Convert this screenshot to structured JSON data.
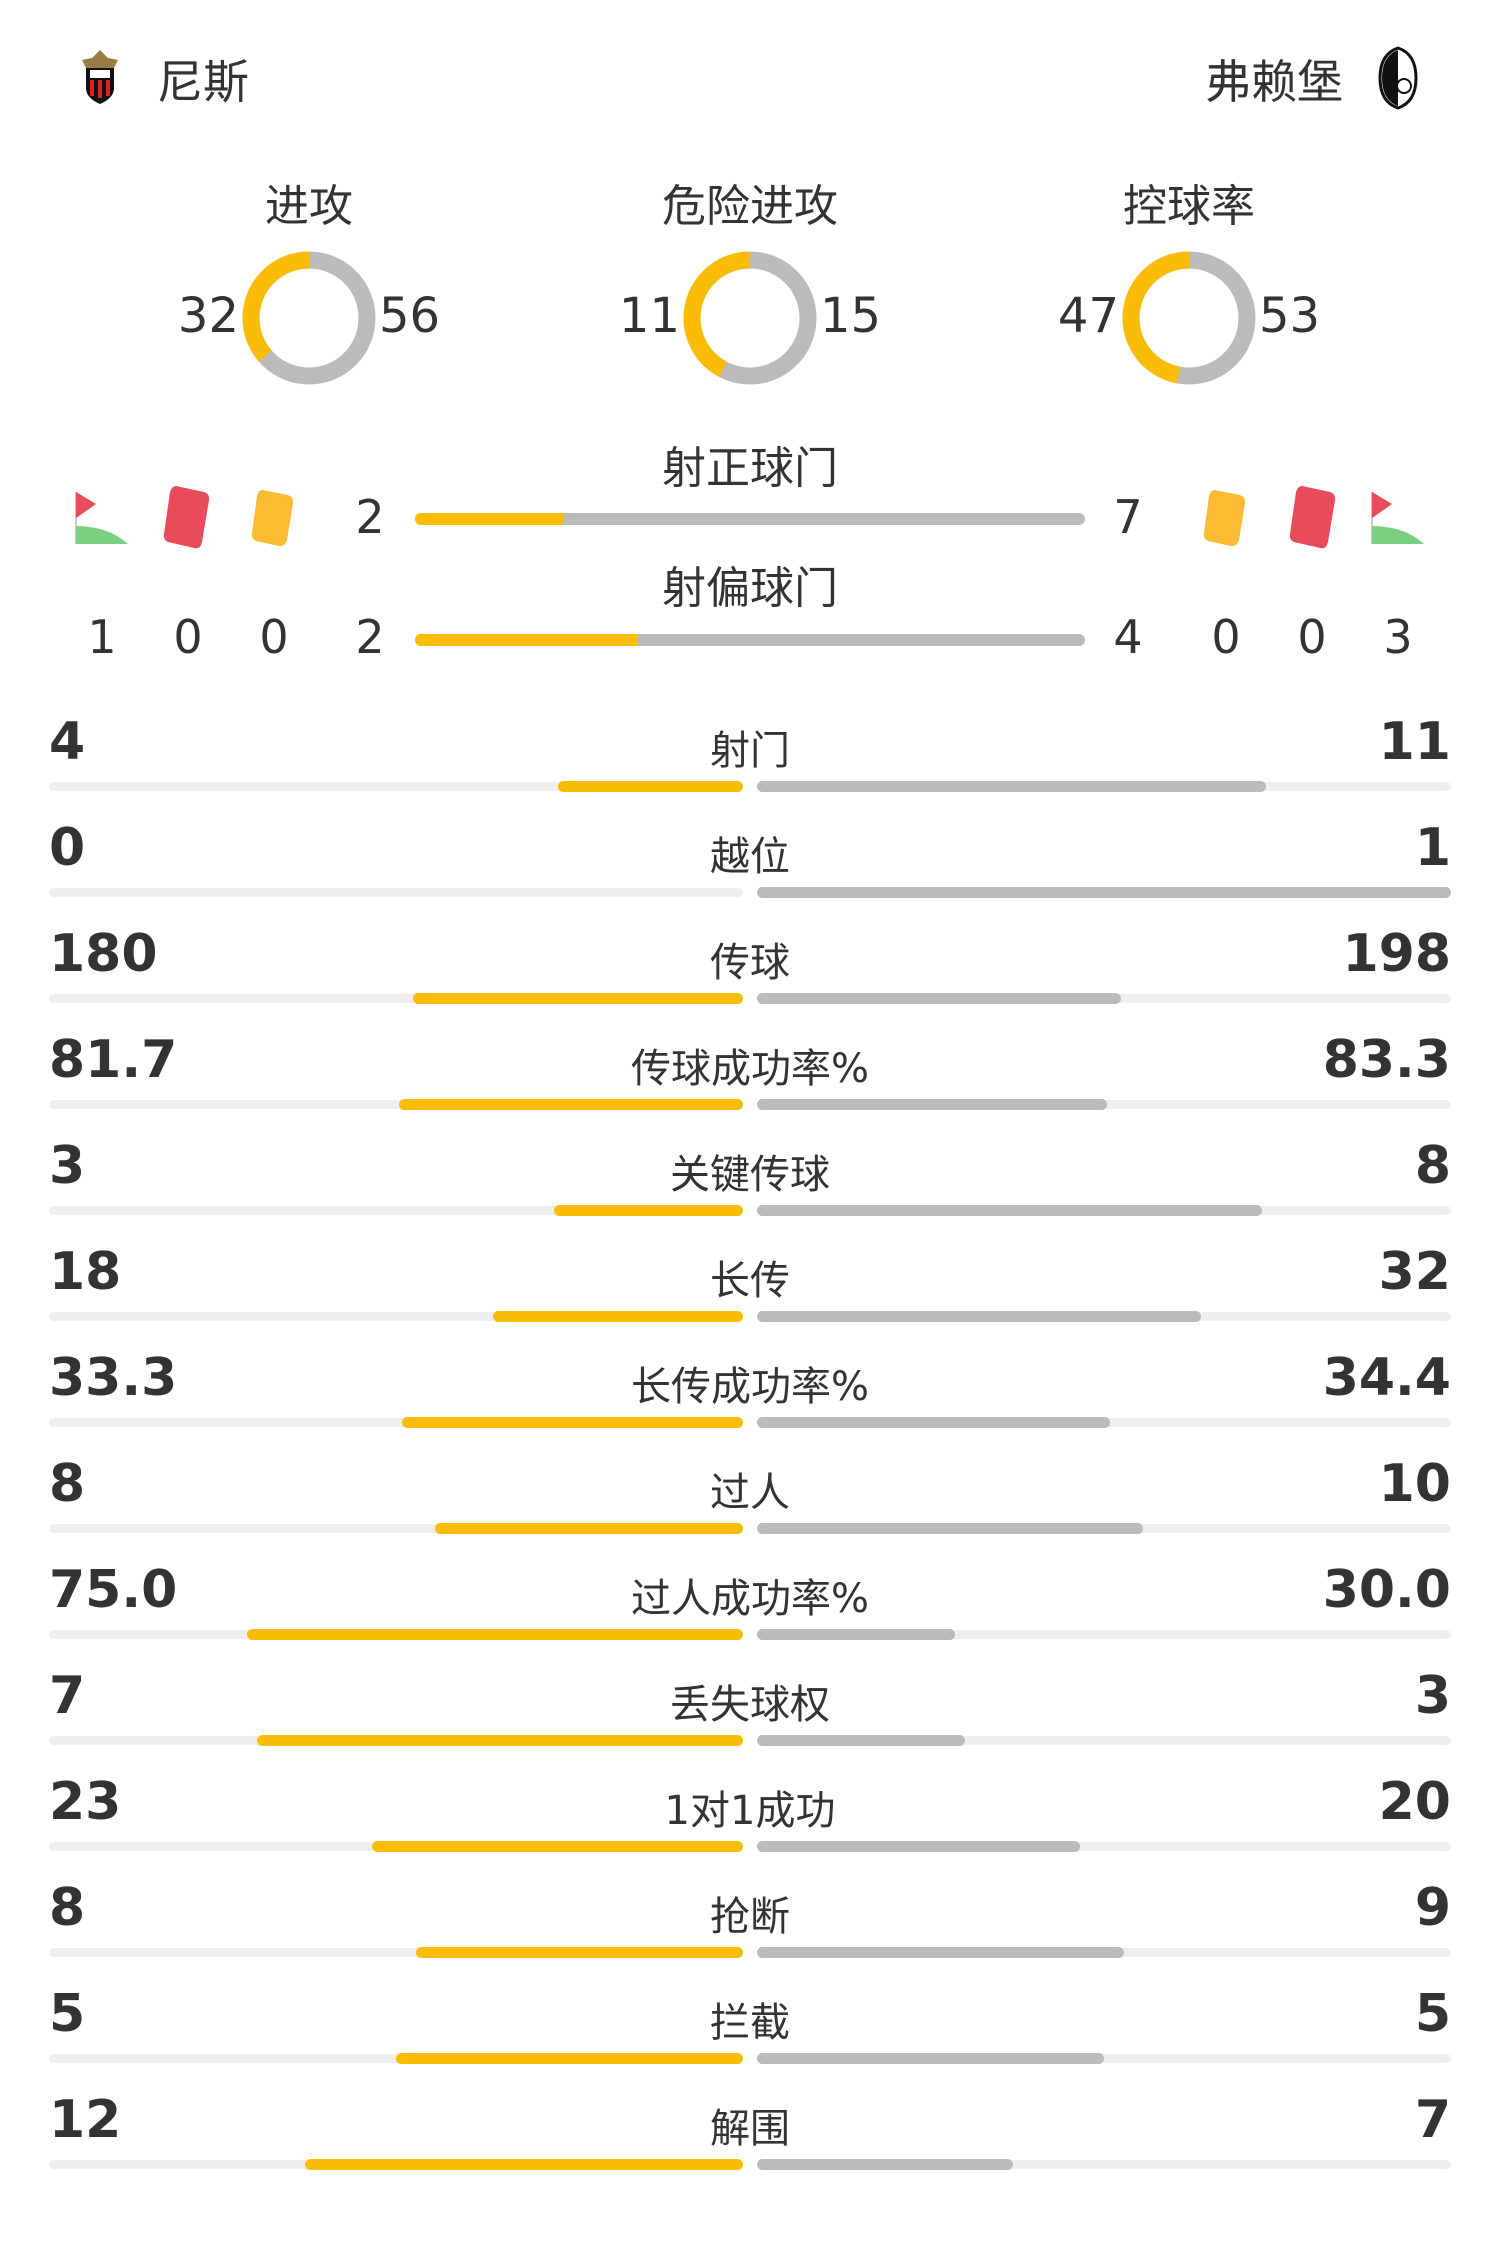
{
  "colors": {
    "home": "#fbbc05",
    "away": "#bbbbbb",
    "text": "#333333",
    "red_card": "#e84b5a",
    "yellow_card": "#fbbc33",
    "corner_flag": "#e84b5a",
    "corner_arc": "#7ccf82"
  },
  "home": {
    "name": "尼斯",
    "logo": "ogc-nice-crest",
    "corners": "1",
    "red_cards": "0",
    "yellow_cards": "0"
  },
  "away": {
    "name": "弗赖堡",
    "logo": "sc-freiburg-crest",
    "corners": "3",
    "red_cards": "0",
    "yellow_cards": "0"
  },
  "donuts": [
    {
      "title": "进攻",
      "home": 32,
      "away": 56,
      "home_text": "32",
      "away_text": "56"
    },
    {
      "title": "危险进攻",
      "home": 11,
      "away": 15,
      "home_text": "11",
      "away_text": "15"
    },
    {
      "title": "控球率",
      "home": 47,
      "away": 53,
      "home_text": "47",
      "away_text": "53"
    }
  ],
  "shots_on_target": {
    "title": "射正球门",
    "home": 2,
    "away": 7,
    "home_text": "2",
    "away_text": "7"
  },
  "shots_off_target": {
    "title": "射偏球门",
    "home": 2,
    "away": 4,
    "home_text": "2",
    "away_text": "4"
  },
  "stats": [
    {
      "label": "射门",
      "home": "4",
      "away": "11"
    },
    {
      "label": "越位",
      "home": "0",
      "away": "1"
    },
    {
      "label": "传球",
      "home": "180",
      "away": "198"
    },
    {
      "label": "传球成功率%",
      "home": "81.7",
      "away": "83.3"
    },
    {
      "label": "关键传球",
      "home": "3",
      "away": "8"
    },
    {
      "label": "长传",
      "home": "18",
      "away": "32"
    },
    {
      "label": "长传成功率%",
      "home": "33.3",
      "away": "34.4"
    },
    {
      "label": "过人",
      "home": "8",
      "away": "10"
    },
    {
      "label": "过人成功率%",
      "home": "75.0",
      "away": "30.0"
    },
    {
      "label": "丢失球权",
      "home": "7",
      "away": "3"
    },
    {
      "label": "1对1成功",
      "home": "23",
      "away": "20"
    },
    {
      "label": "抢断",
      "home": "8",
      "away": "9"
    },
    {
      "label": "拦截",
      "home": "5",
      "away": "5"
    },
    {
      "label": "解围",
      "home": "12",
      "away": "7"
    }
  ]
}
